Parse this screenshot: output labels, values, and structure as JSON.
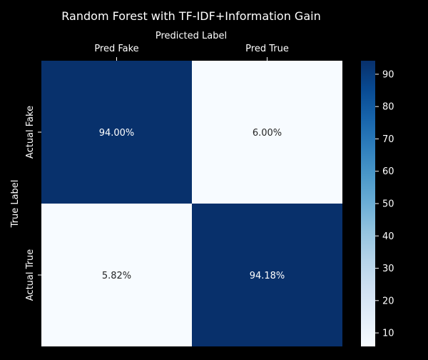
{
  "chart_data": {
    "type": "heatmap",
    "title": "Random Forest with TF-IDF+Information Gain",
    "xlabel": "Predicted Label",
    "ylabel": "True Label",
    "x_categories": [
      "Pred Fake",
      "Pred True"
    ],
    "y_categories": [
      "Actual Fake",
      "Actual True"
    ],
    "values": [
      [
        94.0,
        6.0
      ],
      [
        5.82,
        94.18
      ]
    ],
    "cell_labels": [
      [
        "94.00%",
        "6.00%"
      ],
      [
        "5.82%",
        "94.18%"
      ]
    ],
    "colorbar": {
      "colormap": "Blues",
      "range": [
        5.82,
        94.18
      ],
      "ticks": [
        10,
        20,
        30,
        40,
        50,
        60,
        70,
        80,
        90
      ]
    }
  },
  "colors": {
    "background": "#000000",
    "text": "#ffffff",
    "cell_text_dark": "#262626",
    "cell_text_light": "#ffffff"
  }
}
